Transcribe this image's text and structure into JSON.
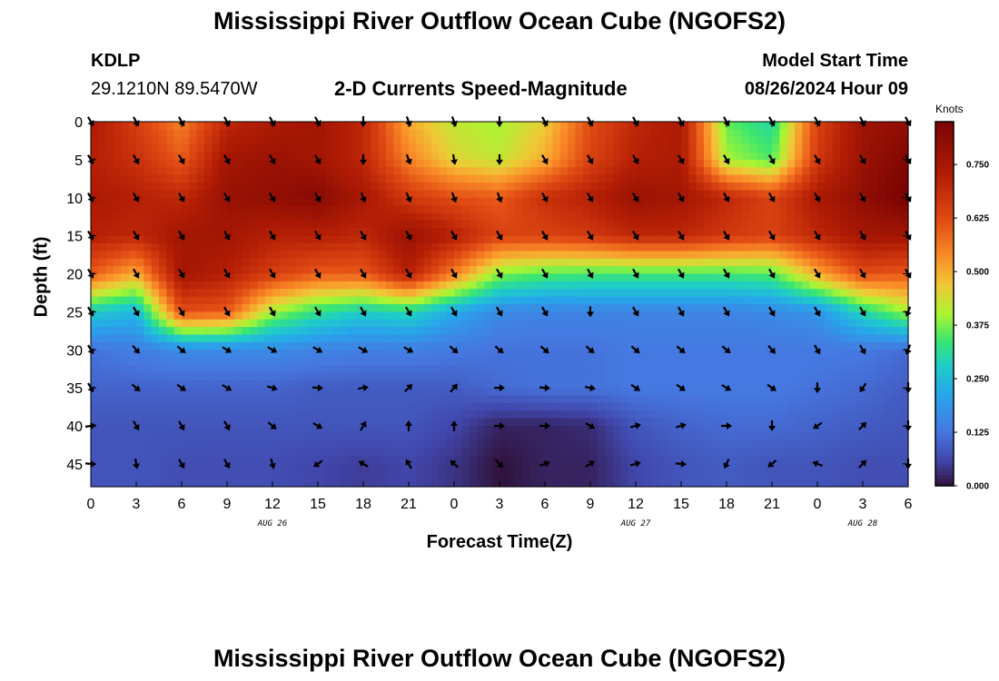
{
  "header": {
    "title": "Mississippi River Outflow Ocean Cube (NGOFS2)",
    "station_id": "KDLP",
    "station_coords": "29.1210N  89.5470W",
    "product": "2-D Currents Speed-Magnitude",
    "model_start_label": "Model Start Time",
    "model_start_value": "08/26/2024 Hour 09"
  },
  "footer": {
    "title": "Mississippi River Outflow Ocean Cube (NGOFS2)"
  },
  "chart_data": {
    "type": "heatmap",
    "title": "2-D Currents Speed-Magnitude",
    "xlabel": "Forecast Time(Z)",
    "ylabel": "Depth (ft)",
    "colorbar_label": "Knots",
    "colorbar_ticks": [
      "0.000",
      "0.125",
      "0.250",
      "0.375",
      "0.500",
      "0.625",
      "0.750"
    ],
    "colorbar_range": [
      0,
      0.85
    ],
    "x_tick_labels": [
      "0",
      "3",
      "6",
      "9",
      "12",
      "15",
      "18",
      "21",
      "0",
      "3",
      "6",
      "9",
      "12",
      "15",
      "18",
      "21",
      "0",
      "3",
      "6"
    ],
    "x_range_hours": [
      0,
      54
    ],
    "date_labels": [
      {
        "text": "AUG 26",
        "hour": 12
      },
      {
        "text": "AUG 27",
        "hour": 36
      },
      {
        "text": "AUG 28",
        "hour": 51
      }
    ],
    "y_tick_labels": [
      "0",
      "5",
      "10",
      "15",
      "20",
      "25",
      "30",
      "35",
      "40",
      "45"
    ],
    "y_range_ft": [
      0,
      48
    ],
    "arrow_depths_ft": [
      0,
      5,
      10,
      15,
      20,
      25,
      30,
      35,
      40,
      45
    ],
    "arrow_hours": [
      0,
      3,
      6,
      9,
      12,
      15,
      18,
      21,
      24,
      27,
      30,
      33,
      36,
      39,
      42,
      45,
      48,
      51,
      54
    ],
    "speed_knots": [
      [
        0.74,
        0.65,
        0.55,
        0.7,
        0.74,
        0.76,
        0.7,
        0.5,
        0.42,
        0.4,
        0.46,
        0.62,
        0.7,
        0.74,
        0.36,
        0.3,
        0.64,
        0.77,
        0.8
      ],
      [
        0.72,
        0.68,
        0.6,
        0.76,
        0.78,
        0.76,
        0.7,
        0.55,
        0.45,
        0.42,
        0.5,
        0.64,
        0.72,
        0.74,
        0.4,
        0.35,
        0.66,
        0.78,
        0.84
      ],
      [
        0.74,
        0.72,
        0.7,
        0.78,
        0.8,
        0.82,
        0.75,
        0.66,
        0.62,
        0.6,
        0.68,
        0.72,
        0.78,
        0.76,
        0.7,
        0.64,
        0.74,
        0.8,
        0.86
      ],
      [
        0.72,
        0.7,
        0.76,
        0.76,
        0.72,
        0.72,
        0.7,
        0.78,
        0.72,
        0.64,
        0.64,
        0.66,
        0.7,
        0.7,
        0.66,
        0.64,
        0.7,
        0.76,
        0.76
      ],
      [
        0.6,
        0.5,
        0.76,
        0.72,
        0.65,
        0.6,
        0.6,
        0.72,
        0.55,
        0.38,
        0.35,
        0.34,
        0.34,
        0.34,
        0.34,
        0.35,
        0.5,
        0.62,
        0.6
      ],
      [
        0.28,
        0.24,
        0.62,
        0.6,
        0.4,
        0.32,
        0.28,
        0.3,
        0.22,
        0.16,
        0.15,
        0.15,
        0.15,
        0.15,
        0.15,
        0.16,
        0.18,
        0.3,
        0.4
      ],
      [
        0.12,
        0.14,
        0.16,
        0.16,
        0.16,
        0.15,
        0.14,
        0.14,
        0.13,
        0.12,
        0.12,
        0.12,
        0.13,
        0.13,
        0.13,
        0.13,
        0.13,
        0.13,
        0.11
      ],
      [
        0.1,
        0.1,
        0.1,
        0.1,
        0.1,
        0.09,
        0.09,
        0.09,
        0.09,
        0.11,
        0.12,
        0.12,
        0.13,
        0.13,
        0.13,
        0.13,
        0.12,
        0.11,
        0.09
      ],
      [
        0.08,
        0.08,
        0.08,
        0.08,
        0.08,
        0.08,
        0.08,
        0.08,
        0.06,
        0.02,
        0.02,
        0.03,
        0.08,
        0.1,
        0.11,
        0.11,
        0.1,
        0.09,
        0.08
      ],
      [
        0.08,
        0.08,
        0.07,
        0.07,
        0.07,
        0.06,
        0.05,
        0.06,
        0.04,
        0.0,
        0.02,
        0.02,
        0.06,
        0.08,
        0.09,
        0.08,
        0.08,
        0.07,
        0.07
      ]
    ],
    "direction_deg": [
      [
        150,
        150,
        150,
        150,
        150,
        150,
        180,
        160,
        160,
        180,
        150,
        150,
        150,
        150,
        150,
        150,
        150,
        150,
        150
      ],
      [
        150,
        150,
        150,
        150,
        150,
        150,
        180,
        160,
        170,
        180,
        150,
        150,
        150,
        150,
        150,
        150,
        150,
        150,
        150
      ],
      [
        150,
        150,
        150,
        150,
        150,
        150,
        160,
        155,
        160,
        160,
        150,
        150,
        150,
        150,
        150,
        150,
        150,
        150,
        150
      ],
      [
        150,
        150,
        150,
        150,
        150,
        150,
        150,
        150,
        150,
        150,
        150,
        150,
        150,
        150,
        150,
        150,
        150,
        150,
        150
      ],
      [
        150,
        150,
        150,
        150,
        150,
        150,
        150,
        150,
        150,
        150,
        150,
        150,
        150,
        150,
        150,
        150,
        150,
        150,
        150
      ],
      [
        150,
        150,
        150,
        150,
        150,
        150,
        150,
        150,
        150,
        150,
        150,
        180,
        150,
        150,
        150,
        150,
        150,
        150,
        200
      ],
      [
        150,
        140,
        130,
        120,
        120,
        120,
        120,
        120,
        130,
        130,
        130,
        130,
        130,
        130,
        130,
        140,
        150,
        150,
        200
      ],
      [
        150,
        130,
        125,
        120,
        105,
        95,
        80,
        45,
        40,
        90,
        95,
        100,
        125,
        125,
        120,
        125,
        180,
        215,
        180
      ],
      [
        80,
        150,
        150,
        150,
        130,
        120,
        30,
        0,
        0,
        90,
        90,
        120,
        75,
        75,
        90,
        180,
        235,
        45,
        180
      ],
      [
        95,
        170,
        150,
        150,
        165,
        235,
        300,
        330,
        310,
        135,
        70,
        60,
        75,
        95,
        205,
        230,
        290,
        45,
        180
      ]
    ]
  }
}
